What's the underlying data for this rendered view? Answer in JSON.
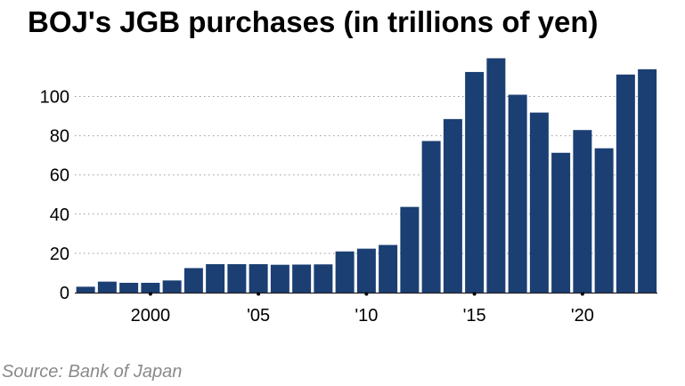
{
  "title": "BOJ's JGB purchases (in trillions of yen)",
  "source": "Source: Bank of Japan",
  "colors": {
    "bar": "#1b3f73",
    "grid": "#9a9a9a",
    "axis": "#222222"
  },
  "chart_data": {
    "type": "bar",
    "title": "BOJ's JGB purchases (in trillions of yen)",
    "xlabel": "",
    "ylabel": "",
    "ylim": [
      0,
      120
    ],
    "yticks": [
      0,
      20,
      40,
      60,
      80,
      100
    ],
    "grid": "horizontal-dotted",
    "legend": "none",
    "x_tick_labels": [
      {
        "year": 2000,
        "label": "2000"
      },
      {
        "year": 2005,
        "label": "'05"
      },
      {
        "year": 2010,
        "label": "'10"
      },
      {
        "year": 2015,
        "label": "'15"
      },
      {
        "year": 2020,
        "label": "'20"
      }
    ],
    "categories": [
      1997,
      1998,
      1999,
      2000,
      2001,
      2002,
      2003,
      2004,
      2005,
      2006,
      2007,
      2008,
      2009,
      2010,
      2011,
      2012,
      2013,
      2014,
      2015,
      2016,
      2017,
      2018,
      2019,
      2020,
      2021,
      2022,
      2023
    ],
    "values": [
      3,
      5.6,
      5,
      5,
      6.2,
      12.5,
      14.5,
      14.5,
      14.5,
      14.2,
      14.3,
      14.4,
      21,
      22.4,
      24.3,
      43.7,
      77.3,
      88.5,
      112.5,
      119.5,
      100.9,
      91.8,
      71.3,
      82.9,
      73.6,
      111.2,
      113.9
    ]
  }
}
